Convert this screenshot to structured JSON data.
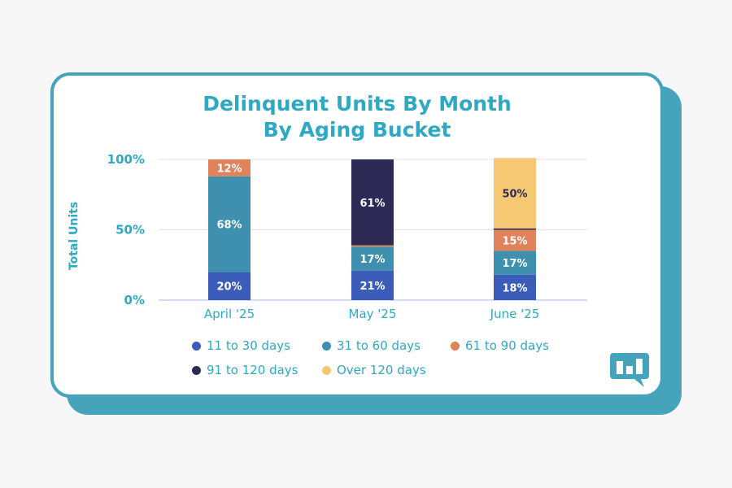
{
  "chart_data": {
    "type": "bar",
    "stacked": true,
    "title": "Delinquent Units By Month\nBy Aging Bucket",
    "title_lines": [
      "Delinquent Units By Month",
      "By Aging Bucket"
    ],
    "ylabel": "Total Units",
    "xlabel": "",
    "ylim": [
      0,
      100
    ],
    "yticks": [
      "0%",
      "50%",
      "100%"
    ],
    "grid": true,
    "legend_position": "bottom",
    "categories": [
      "April '25",
      "May '25",
      "June '25"
    ],
    "series": [
      {
        "name": "11 to 30 days",
        "color": "#3b5cb8",
        "values": [
          20,
          21,
          18
        ],
        "labels": [
          "20%",
          "21%",
          "18%"
        ]
      },
      {
        "name": "31 to 60 days",
        "color": "#3f8fae",
        "values": [
          68,
          17,
          17
        ],
        "labels": [
          "68%",
          "17%",
          "17%"
        ]
      },
      {
        "name": "61 to 90 days",
        "color": "#e0835a",
        "values": [
          12,
          1,
          15
        ],
        "labels": [
          "12%",
          "",
          "15%"
        ]
      },
      {
        "name": "91 to 120 days",
        "color": "#2d2b55",
        "values": [
          0,
          61,
          1
        ],
        "labels": [
          "",
          "61%",
          ""
        ]
      },
      {
        "name": "Over 120 days",
        "color": "#f7c874",
        "values": [
          0,
          0,
          50
        ],
        "labels": [
          "",
          "",
          "50%"
        ]
      }
    ]
  }
}
